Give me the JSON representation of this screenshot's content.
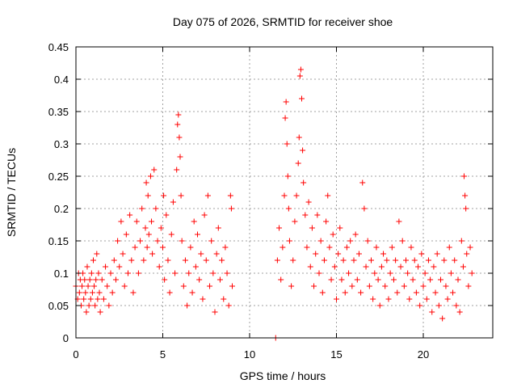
{
  "chart_data": {
    "type": "scatter",
    "title": "Day 075 of 2026, SRMTID for receiver shoe",
    "xlabel": "GPS time / hours",
    "ylabel": "SRMTID / TECUs",
    "xlim": [
      0,
      24
    ],
    "ylim": [
      0,
      0.45
    ],
    "xticks": [
      0,
      5,
      10,
      15,
      20
    ],
    "xtick_labels": [
      "0",
      "5",
      "10",
      "15",
      "20"
    ],
    "yticks": [
      0,
      0.05,
      0.1,
      0.15,
      0.2,
      0.25,
      0.3,
      0.35,
      0.4,
      0.45
    ],
    "ytick_labels": [
      "0",
      "0.05",
      "0.1",
      "0.15",
      "0.2",
      "0.25",
      "0.3",
      "0.35",
      "0.4",
      "0.45"
    ],
    "grid": true,
    "marker": "+",
    "color": "#ff0000",
    "series": [
      {
        "name": "SRMTID",
        "points": [
          [
            0.0,
            0.08
          ],
          [
            0.1,
            0.06
          ],
          [
            0.15,
            0.1
          ],
          [
            0.2,
            0.07
          ],
          [
            0.25,
            0.09
          ],
          [
            0.3,
            0.05
          ],
          [
            0.35,
            0.08
          ],
          [
            0.4,
            0.1
          ],
          [
            0.45,
            0.06
          ],
          [
            0.5,
            0.09
          ],
          [
            0.55,
            0.07
          ],
          [
            0.6,
            0.04
          ],
          [
            0.65,
            0.11
          ],
          [
            0.7,
            0.08
          ],
          [
            0.75,
            0.05
          ],
          [
            0.8,
            0.09
          ],
          [
            0.85,
            0.06
          ],
          [
            0.9,
            0.1
          ],
          [
            0.95,
            0.07
          ],
          [
            1.0,
            0.12
          ],
          [
            1.05,
            0.08
          ],
          [
            1.1,
            0.05
          ],
          [
            1.15,
            0.09
          ],
          [
            1.2,
            0.13
          ],
          [
            1.25,
            0.06
          ],
          [
            1.3,
            0.1
          ],
          [
            1.35,
            0.07
          ],
          [
            1.4,
            0.04
          ],
          [
            1.5,
            0.09
          ],
          [
            1.6,
            0.06
          ],
          [
            1.7,
            0.11
          ],
          [
            1.8,
            0.08
          ],
          [
            1.9,
            0.05
          ],
          [
            2.0,
            0.1
          ],
          [
            2.1,
            0.07
          ],
          [
            2.2,
            0.12
          ],
          [
            2.3,
            0.09
          ],
          [
            2.4,
            0.15
          ],
          [
            2.5,
            0.11
          ],
          [
            2.6,
            0.18
          ],
          [
            2.7,
            0.13
          ],
          [
            2.8,
            0.08
          ],
          [
            2.9,
            0.16
          ],
          [
            3.0,
            0.1
          ],
          [
            3.1,
            0.19
          ],
          [
            3.2,
            0.12
          ],
          [
            3.3,
            0.07
          ],
          [
            3.4,
            0.14
          ],
          [
            3.5,
            0.18
          ],
          [
            3.6,
            0.1
          ],
          [
            3.7,
            0.15
          ],
          [
            3.8,
            0.2
          ],
          [
            3.9,
            0.12
          ],
          [
            4.0,
            0.17
          ],
          [
            4.05,
            0.24
          ],
          [
            4.1,
            0.14
          ],
          [
            4.15,
            0.22
          ],
          [
            4.2,
            0.16
          ],
          [
            4.3,
            0.25
          ],
          [
            4.35,
            0.18
          ],
          [
            4.4,
            0.13
          ],
          [
            4.5,
            0.26
          ],
          [
            4.6,
            0.2
          ],
          [
            4.7,
            0.15
          ],
          [
            4.8,
            0.11
          ],
          [
            4.9,
            0.17
          ],
          [
            5.0,
            0.14
          ],
          [
            5.05,
            0.22
          ],
          [
            5.1,
            0.09
          ],
          [
            5.2,
            0.19
          ],
          [
            5.3,
            0.12
          ],
          [
            5.4,
            0.07
          ],
          [
            5.5,
            0.16
          ],
          [
            5.6,
            0.21
          ],
          [
            5.7,
            0.1
          ],
          [
            5.8,
            0.26
          ],
          [
            5.85,
            0.33
          ],
          [
            5.9,
            0.345
          ],
          [
            5.95,
            0.31
          ],
          [
            6.0,
            0.28
          ],
          [
            6.05,
            0.22
          ],
          [
            6.1,
            0.15
          ],
          [
            6.2,
            0.08
          ],
          [
            6.3,
            0.12
          ],
          [
            6.4,
            0.05
          ],
          [
            6.5,
            0.1
          ],
          [
            6.6,
            0.14
          ],
          [
            6.7,
            0.07
          ],
          [
            6.8,
            0.18
          ],
          [
            6.9,
            0.11
          ],
          [
            7.0,
            0.16
          ],
          [
            7.1,
            0.09
          ],
          [
            7.2,
            0.13
          ],
          [
            7.3,
            0.06
          ],
          [
            7.4,
            0.19
          ],
          [
            7.5,
            0.12
          ],
          [
            7.6,
            0.22
          ],
          [
            7.7,
            0.08
          ],
          [
            7.8,
            0.15
          ],
          [
            7.9,
            0.1
          ],
          [
            8.0,
            0.04
          ],
          [
            8.1,
            0.13
          ],
          [
            8.2,
            0.17
          ],
          [
            8.3,
            0.09
          ],
          [
            8.4,
            0.12
          ],
          [
            8.5,
            0.06
          ],
          [
            8.6,
            0.14
          ],
          [
            8.7,
            0.1
          ],
          [
            8.8,
            0.05
          ],
          [
            8.9,
            0.22
          ],
          [
            8.95,
            0.2
          ],
          [
            9.0,
            0.08
          ],
          [
            11.5,
            0.0
          ],
          [
            11.6,
            0.12
          ],
          [
            11.7,
            0.17
          ],
          [
            11.8,
            0.09
          ],
          [
            11.9,
            0.14
          ],
          [
            12.0,
            0.22
          ],
          [
            12.05,
            0.34
          ],
          [
            12.1,
            0.365
          ],
          [
            12.15,
            0.3
          ],
          [
            12.2,
            0.25
          ],
          [
            12.25,
            0.2
          ],
          [
            12.3,
            0.15
          ],
          [
            12.4,
            0.08
          ],
          [
            12.5,
            0.12
          ],
          [
            12.6,
            0.18
          ],
          [
            12.7,
            0.22
          ],
          [
            12.8,
            0.27
          ],
          [
            12.85,
            0.31
          ],
          [
            12.9,
            0.405
          ],
          [
            12.95,
            0.415
          ],
          [
            13.0,
            0.37
          ],
          [
            13.05,
            0.29
          ],
          [
            13.1,
            0.24
          ],
          [
            13.2,
            0.19
          ],
          [
            13.3,
            0.14
          ],
          [
            13.4,
            0.21
          ],
          [
            13.5,
            0.11
          ],
          [
            13.6,
            0.17
          ],
          [
            13.7,
            0.08
          ],
          [
            13.8,
            0.13
          ],
          [
            13.9,
            0.19
          ],
          [
            14.0,
            0.1
          ],
          [
            14.1,
            0.15
          ],
          [
            14.2,
            0.07
          ],
          [
            14.3,
            0.12
          ],
          [
            14.4,
            0.18
          ],
          [
            14.5,
            0.22
          ],
          [
            14.6,
            0.14
          ],
          [
            14.7,
            0.09
          ],
          [
            14.8,
            0.16
          ],
          [
            14.9,
            0.11
          ],
          [
            15.0,
            0.06
          ],
          [
            15.1,
            0.13
          ],
          [
            15.2,
            0.17
          ],
          [
            15.3,
            0.09
          ],
          [
            15.4,
            0.12
          ],
          [
            15.5,
            0.07
          ],
          [
            15.6,
            0.14
          ],
          [
            15.7,
            0.1
          ],
          [
            15.8,
            0.15
          ],
          [
            15.9,
            0.08
          ],
          [
            16.0,
            0.12
          ],
          [
            16.1,
            0.16
          ],
          [
            16.2,
            0.09
          ],
          [
            16.3,
            0.13
          ],
          [
            16.4,
            0.07
          ],
          [
            16.5,
            0.24
          ],
          [
            16.6,
            0.2
          ],
          [
            16.7,
            0.11
          ],
          [
            16.8,
            0.15
          ],
          [
            16.9,
            0.08
          ],
          [
            17.0,
            0.12
          ],
          [
            17.1,
            0.06
          ],
          [
            17.2,
            0.1
          ],
          [
            17.3,
            0.14
          ],
          [
            17.4,
            0.09
          ],
          [
            17.5,
            0.05
          ],
          [
            17.6,
            0.11
          ],
          [
            17.7,
            0.13
          ],
          [
            17.8,
            0.08
          ],
          [
            17.9,
            0.12
          ],
          [
            18.0,
            0.06
          ],
          [
            18.1,
            0.1
          ],
          [
            18.2,
            0.14
          ],
          [
            18.3,
            0.09
          ],
          [
            18.4,
            0.12
          ],
          [
            18.5,
            0.07
          ],
          [
            18.6,
            0.18
          ],
          [
            18.7,
            0.11
          ],
          [
            18.8,
            0.15
          ],
          [
            18.9,
            0.08
          ],
          [
            19.0,
            0.12
          ],
          [
            19.1,
            0.1
          ],
          [
            19.2,
            0.06
          ],
          [
            19.3,
            0.14
          ],
          [
            19.4,
            0.09
          ],
          [
            19.5,
            0.12
          ],
          [
            19.6,
            0.07
          ],
          [
            19.7,
            0.11
          ],
          [
            19.8,
            0.05
          ],
          [
            19.9,
            0.13
          ],
          [
            20.0,
            0.08
          ],
          [
            20.1,
            0.1
          ],
          [
            20.2,
            0.06
          ],
          [
            20.3,
            0.12
          ],
          [
            20.4,
            0.09
          ],
          [
            20.5,
            0.04
          ],
          [
            20.6,
            0.11
          ],
          [
            20.7,
            0.07
          ],
          [
            20.8,
            0.13
          ],
          [
            20.9,
            0.05
          ],
          [
            21.0,
            0.09
          ],
          [
            21.1,
            0.03
          ],
          [
            21.2,
            0.12
          ],
          [
            21.3,
            0.08
          ],
          [
            21.4,
            0.06
          ],
          [
            21.5,
            0.14
          ],
          [
            21.6,
            0.1
          ],
          [
            21.7,
            0.07
          ],
          [
            21.8,
            0.12
          ],
          [
            21.9,
            0.05
          ],
          [
            22.0,
            0.09
          ],
          [
            22.1,
            0.04
          ],
          [
            22.2,
            0.15
          ],
          [
            22.3,
            0.11
          ],
          [
            22.35,
            0.25
          ],
          [
            22.4,
            0.22
          ],
          [
            22.45,
            0.2
          ],
          [
            22.5,
            0.13
          ],
          [
            22.6,
            0.08
          ],
          [
            22.7,
            0.14
          ],
          [
            22.8,
            0.1
          ]
        ]
      }
    ]
  }
}
